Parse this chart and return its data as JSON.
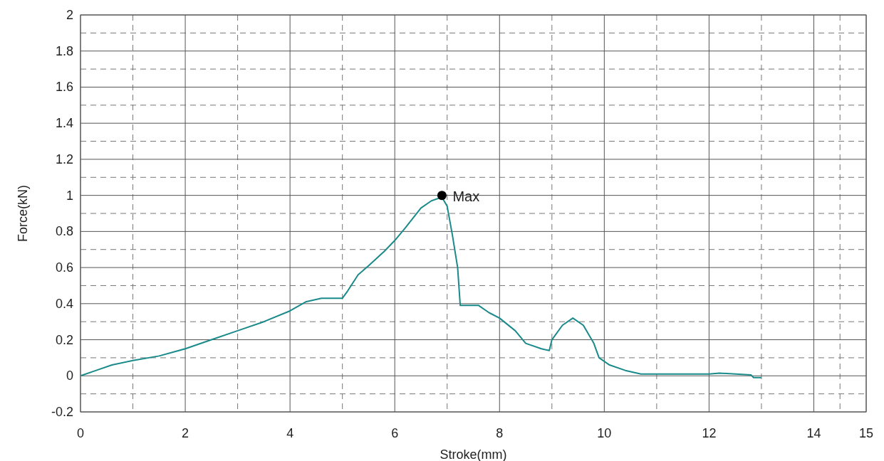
{
  "chart_data": {
    "type": "line",
    "xlabel": "Stroke(mm)",
    "ylabel": "Force(kN)",
    "xlim": [
      0,
      15
    ],
    "ylim": [
      -0.2,
      2
    ],
    "xticks": [
      0,
      2,
      4,
      6,
      8,
      10,
      12,
      14,
      15
    ],
    "yticks": [
      -0.2,
      0,
      0.2,
      0.4,
      0.6,
      0.8,
      1,
      1.2,
      1.4,
      1.6,
      1.8,
      2
    ],
    "grid": true,
    "annotations": [
      {
        "text": "Max",
        "x": 6.9,
        "y": 1
      }
    ],
    "series": [
      {
        "color": "#1a8a8a",
        "x": [
          0,
          0.3,
          0.6,
          1,
          1.5,
          2,
          2.5,
          3,
          3.5,
          4,
          4.3,
          4.6,
          5,
          5.1,
          5.3,
          5.5,
          5.8,
          6,
          6.2,
          6.5,
          6.7,
          6.9,
          7,
          7.1,
          7.2,
          7.25,
          7.4,
          7.6,
          7.8,
          8,
          8.3,
          8.5,
          8.8,
          8.95,
          9,
          9.2,
          9.4,
          9.6,
          9.8,
          9.9,
          10.1,
          10.4,
          10.7,
          11.5,
          12,
          12.2,
          12.8,
          12.85,
          13
        ],
        "values": [
          0,
          0.03,
          0.06,
          0.085,
          0.11,
          0.15,
          0.2,
          0.25,
          0.3,
          0.36,
          0.41,
          0.43,
          0.43,
          0.47,
          0.56,
          0.61,
          0.69,
          0.75,
          0.82,
          0.93,
          0.97,
          0.99,
          0.94,
          0.78,
          0.6,
          0.39,
          0.39,
          0.39,
          0.35,
          0.32,
          0.25,
          0.18,
          0.15,
          0.14,
          0.2,
          0.28,
          0.32,
          0.28,
          0.18,
          0.1,
          0.06,
          0.03,
          0.01,
          0.01,
          0.01,
          0.015,
          0.005,
          -0.01,
          -0.01
        ]
      },
      {
        "type": "scatter",
        "color": "#000000",
        "marker": "circle",
        "x": [
          6.9
        ],
        "values": [
          1
        ]
      }
    ]
  }
}
